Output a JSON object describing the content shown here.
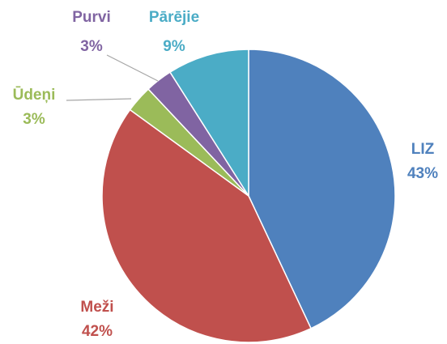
{
  "chart_data": {
    "type": "pie",
    "categories": [
      "LIZ",
      "Meži",
      "Ūdeņi",
      "Purvi",
      "Pārējie"
    ],
    "values": [
      43,
      42,
      3,
      3,
      9
    ],
    "value_labels": [
      "43%",
      "42%",
      "3%",
      "3%",
      "9%"
    ],
    "colors": [
      "#4f81bd",
      "#c0504d",
      "#9bbb59",
      "#8064a2",
      "#4bacc6"
    ]
  }
}
